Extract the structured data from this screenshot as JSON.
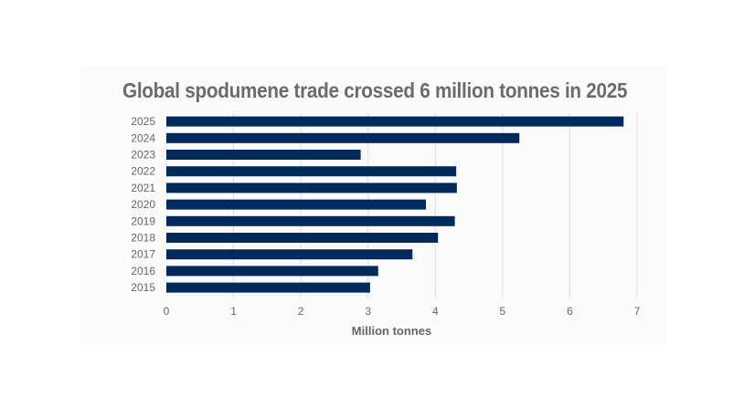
{
  "chart_data": {
    "type": "bar",
    "orientation": "horizontal",
    "title": "Global spodumene trade crossed 6 million tonnes in 2025",
    "xlabel": "Million tonnes",
    "ylabel": "",
    "categories": [
      "2025",
      "2024",
      "2023",
      "2022",
      "2021",
      "2020",
      "2019",
      "2018",
      "2017",
      "2016",
      "2015"
    ],
    "values": [
      6.8,
      5.25,
      2.89,
      4.31,
      4.32,
      3.86,
      4.29,
      4.04,
      3.66,
      3.15,
      3.03
    ],
    "xlim": [
      0,
      7
    ],
    "xticks": [
      "0",
      "1",
      "2",
      "3",
      "4",
      "5",
      "6",
      "7"
    ],
    "grid": "vertical",
    "bar_color": "#002a5c",
    "grid_color": "#dcdcdc"
  }
}
